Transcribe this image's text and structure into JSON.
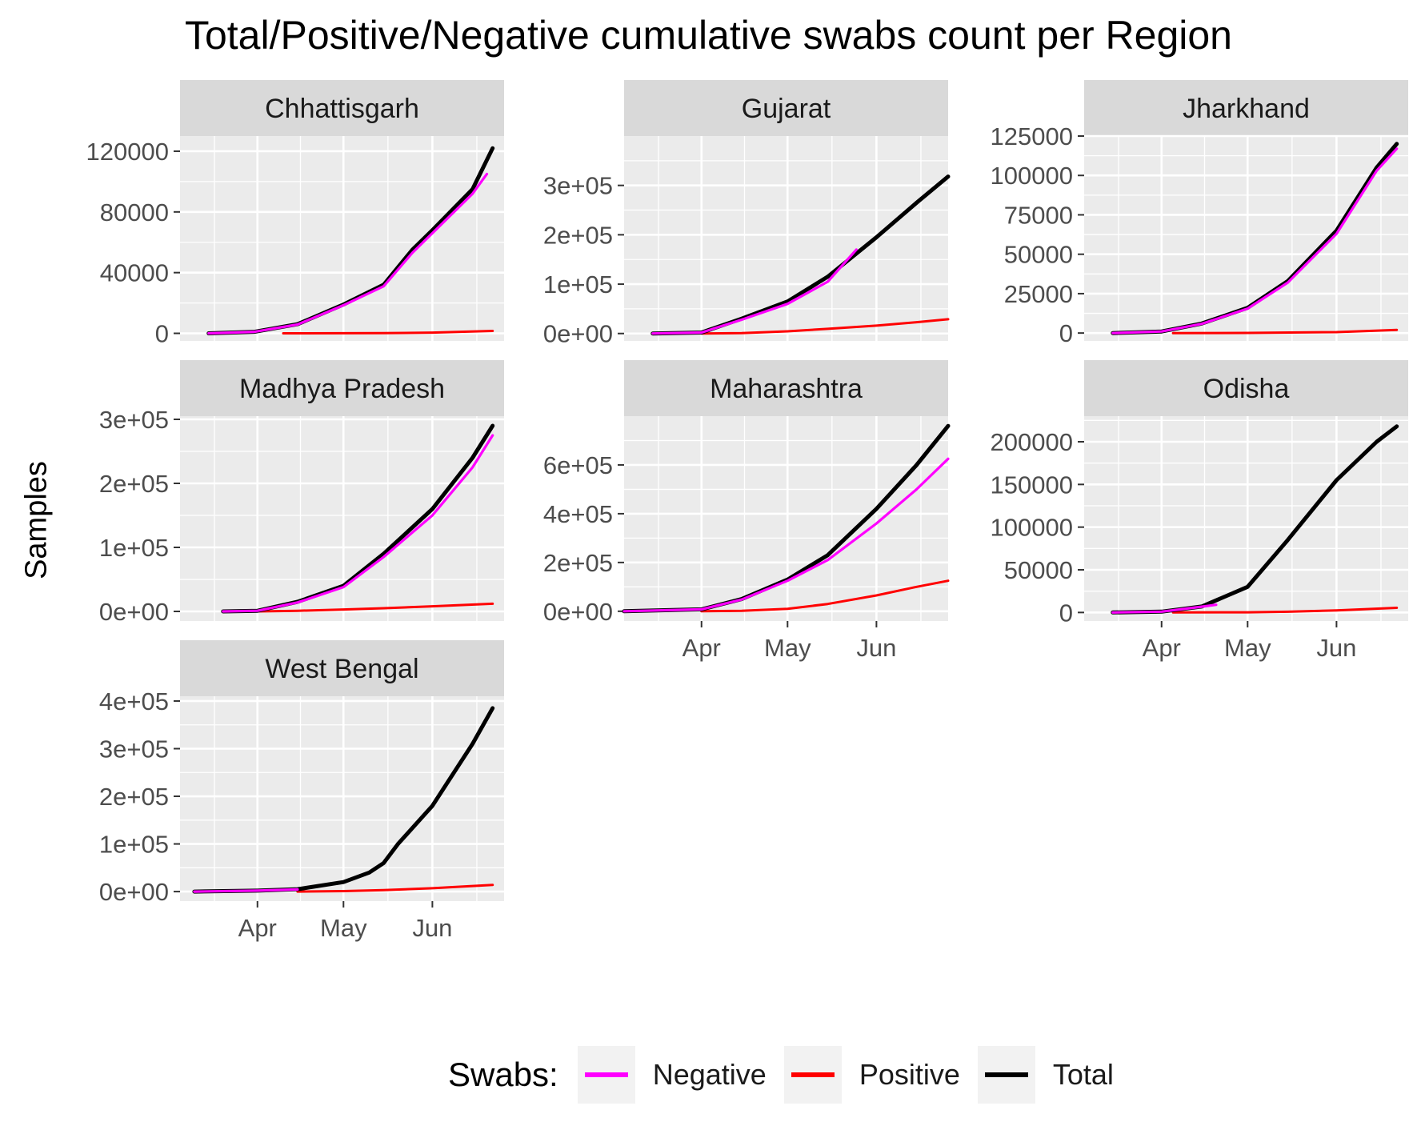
{
  "title": "Total/Positive/Negative cumulative swabs count per Region",
  "chart_data": {
    "type": "line",
    "ylabel": "Samples",
    "xlabel": "",
    "x_ticks": [
      "Apr",
      "May",
      "Jun"
    ],
    "x_range": [
      "2020-03-05",
      "2020-06-26"
    ],
    "grid": true,
    "legend": {
      "title": "Swabs:",
      "placement": "bottom",
      "entries": [
        {
          "name": "Negative",
          "color": "#ff00ff"
        },
        {
          "name": "Positive",
          "color": "#ff0000"
        },
        {
          "name": "Total",
          "color": "#000000"
        }
      ]
    },
    "panels": [
      {
        "name": "Chhattisgarh",
        "ylim": [
          -5000,
          130000
        ],
        "y_ticks": [
          0,
          40000,
          80000,
          120000
        ],
        "y_tick_labels": [
          "0",
          "40000",
          "80000",
          "120000"
        ],
        "series": [
          {
            "name": "Total",
            "x": [
              "2020-03-15",
              "2020-03-31",
              "2020-04-15",
              "2020-05-01",
              "2020-05-15",
              "2020-05-25",
              "2020-06-01",
              "2020-06-15",
              "2020-06-22"
            ],
            "values": [
              0,
              1000,
              6000,
              19000,
              32000,
              55000,
              68000,
              95000,
              122000
            ]
          },
          {
            "name": "Negative",
            "x": [
              "2020-03-15",
              "2020-03-31",
              "2020-04-15",
              "2020-05-01",
              "2020-05-15",
              "2020-05-25",
              "2020-06-01",
              "2020-06-15",
              "2020-06-20"
            ],
            "values": [
              0,
              1000,
              5800,
              18500,
              31000,
              53000,
              66000,
              92000,
              105000
            ]
          },
          {
            "name": "Positive",
            "x": [
              "2020-04-10",
              "2020-05-01",
              "2020-05-15",
              "2020-06-01",
              "2020-06-22"
            ],
            "values": [
              0,
              50,
              100,
              500,
              1600
            ]
          }
        ]
      },
      {
        "name": "Gujarat",
        "ylim": [
          -15000,
          400000
        ],
        "y_ticks": [
          0,
          100000,
          200000,
          300000
        ],
        "y_tick_labels": [
          "0e+00",
          "1e+05",
          "2e+05",
          "3e+05"
        ],
        "series": [
          {
            "name": "Total",
            "x": [
              "2020-03-15",
              "2020-04-01",
              "2020-04-15",
              "2020-05-01",
              "2020-05-15",
              "2020-06-01",
              "2020-06-15",
              "2020-06-26"
            ],
            "values": [
              0,
              2000,
              30000,
              65000,
              115000,
              195000,
              265000,
              318000
            ]
          },
          {
            "name": "Negative",
            "x": [
              "2020-03-15",
              "2020-04-01",
              "2020-04-15",
              "2020-05-01",
              "2020-05-15",
              "2020-05-25"
            ],
            "values": [
              0,
              2000,
              28000,
              60000,
              105000,
              170000
            ]
          },
          {
            "name": "Positive",
            "x": [
              "2020-04-01",
              "2020-04-15",
              "2020-05-01",
              "2020-05-15",
              "2020-06-01",
              "2020-06-15",
              "2020-06-26"
            ],
            "values": [
              0,
              800,
              4500,
              9500,
              16000,
              23000,
              29000
            ]
          }
        ]
      },
      {
        "name": "Jharkhand",
        "ylim": [
          -5000,
          125000
        ],
        "y_ticks": [
          0,
          25000,
          50000,
          75000,
          100000,
          125000
        ],
        "y_tick_labels": [
          "0",
          "25000",
          "50000",
          "75000",
          "100000",
          "125000"
        ],
        "series": [
          {
            "name": "Total",
            "x": [
              "2020-03-15",
              "2020-04-01",
              "2020-04-15",
              "2020-05-01",
              "2020-05-15",
              "2020-06-01",
              "2020-06-15",
              "2020-06-22"
            ],
            "values": [
              0,
              1000,
              6000,
              16000,
              33000,
              65000,
              105000,
              120000
            ]
          },
          {
            "name": "Negative",
            "x": [
              "2020-03-15",
              "2020-04-01",
              "2020-04-15",
              "2020-05-01",
              "2020-05-15",
              "2020-06-01",
              "2020-06-15",
              "2020-06-22"
            ],
            "values": [
              0,
              1000,
              5800,
              15500,
              32000,
              63000,
              103000,
              117000
            ]
          },
          {
            "name": "Positive",
            "x": [
              "2020-04-05",
              "2020-05-01",
              "2020-06-01",
              "2020-06-22"
            ],
            "values": [
              0,
              100,
              600,
              2000
            ]
          }
        ]
      },
      {
        "name": "Madhya Pradesh",
        "ylim": [
          -15000,
          305000
        ],
        "y_ticks": [
          0,
          100000,
          200000,
          300000
        ],
        "y_tick_labels": [
          "0e+00",
          "1e+05",
          "2e+05",
          "3e+05"
        ],
        "series": [
          {
            "name": "Total",
            "x": [
              "2020-03-20",
              "2020-04-01",
              "2020-04-15",
              "2020-05-01",
              "2020-05-15",
              "2020-06-01",
              "2020-06-15",
              "2020-06-22"
            ],
            "values": [
              0,
              1000,
              15000,
              40000,
              90000,
              160000,
              240000,
              290000
            ]
          },
          {
            "name": "Negative",
            "x": [
              "2020-03-20",
              "2020-04-01",
              "2020-04-15",
              "2020-05-01",
              "2020-05-15",
              "2020-06-01",
              "2020-06-15",
              "2020-06-22"
            ],
            "values": [
              0,
              1000,
              14000,
              38000,
              85000,
              150000,
              225000,
              275000
            ]
          },
          {
            "name": "Positive",
            "x": [
              "2020-04-01",
              "2020-04-15",
              "2020-05-01",
              "2020-05-15",
              "2020-06-01",
              "2020-06-22"
            ],
            "values": [
              0,
              1000,
              3000,
              5000,
              8000,
              12000
            ]
          }
        ]
      },
      {
        "name": "Maharashtra",
        "ylim": [
          -40000,
          800000
        ],
        "y_ticks": [
          0,
          200000,
          400000,
          600000
        ],
        "y_tick_labels": [
          "0e+00",
          "2e+05",
          "4e+05",
          "6e+05"
        ],
        "series": [
          {
            "name": "Total",
            "x": [
              "2020-03-05",
              "2020-04-01",
              "2020-04-15",
              "2020-05-01",
              "2020-05-15",
              "2020-06-01",
              "2020-06-15",
              "2020-06-26"
            ],
            "values": [
              0,
              8000,
              50000,
              130000,
              230000,
              420000,
              600000,
              760000
            ]
          },
          {
            "name": "Negative",
            "x": [
              "2020-03-05",
              "2020-04-01",
              "2020-04-15",
              "2020-05-01",
              "2020-05-15",
              "2020-06-01",
              "2020-06-15",
              "2020-06-26"
            ],
            "values": [
              0,
              8000,
              48000,
              125000,
              210000,
              360000,
              500000,
              625000
            ]
          },
          {
            "name": "Positive",
            "x": [
              "2020-04-01",
              "2020-04-15",
              "2020-05-01",
              "2020-05-15",
              "2020-06-01",
              "2020-06-15",
              "2020-06-26"
            ],
            "values": [
              0,
              2000,
              10000,
              30000,
              65000,
              100000,
              125000
            ]
          }
        ]
      },
      {
        "name": "Odisha",
        "ylim": [
          -10000,
          230000
        ],
        "y_ticks": [
          0,
          50000,
          100000,
          150000,
          200000
        ],
        "y_tick_labels": [
          "0",
          "50000",
          "100000",
          "150000",
          "200000"
        ],
        "series": [
          {
            "name": "Total",
            "x": [
              "2020-03-15",
              "2020-04-01",
              "2020-04-15",
              "2020-05-01",
              "2020-05-15",
              "2020-06-01",
              "2020-06-15",
              "2020-06-22"
            ],
            "values": [
              0,
              1000,
              7000,
              30000,
              85000,
              155000,
              200000,
              218000
            ]
          },
          {
            "name": "Negative",
            "x": [
              "2020-03-15",
              "2020-04-01",
              "2020-04-15",
              "2020-04-20"
            ],
            "values": [
              0,
              1000,
              6800,
              9000
            ]
          },
          {
            "name": "Positive",
            "x": [
              "2020-04-05",
              "2020-05-01",
              "2020-05-15",
              "2020-06-01",
              "2020-06-22"
            ],
            "values": [
              0,
              200,
              900,
              2500,
              5500
            ]
          }
        ]
      },
      {
        "name": "West Bengal",
        "ylim": [
          -20000,
          410000
        ],
        "y_ticks": [
          0,
          100000,
          200000,
          300000,
          400000
        ],
        "y_tick_labels": [
          "0e+00",
          "1e+05",
          "2e+05",
          "3e+05",
          "4e+05"
        ],
        "series": [
          {
            "name": "Total",
            "x": [
              "2020-03-10",
              "2020-04-01",
              "2020-04-15",
              "2020-05-01",
              "2020-05-10",
              "2020-05-15",
              "2020-05-20",
              "2020-06-01",
              "2020-06-15",
              "2020-06-22"
            ],
            "values": [
              0,
              2000,
              5000,
              20000,
              40000,
              60000,
              100000,
              180000,
              310000,
              385000
            ]
          },
          {
            "name": "Negative",
            "x": [
              "2020-03-10",
              "2020-04-01",
              "2020-04-15"
            ],
            "values": [
              0,
              2000,
              4500
            ]
          },
          {
            "name": "Positive",
            "x": [
              "2020-04-15",
              "2020-05-01",
              "2020-05-15",
              "2020-06-01",
              "2020-06-22"
            ],
            "values": [
              0,
              1000,
              3000,
              7000,
              14000
            ]
          }
        ]
      }
    ]
  }
}
